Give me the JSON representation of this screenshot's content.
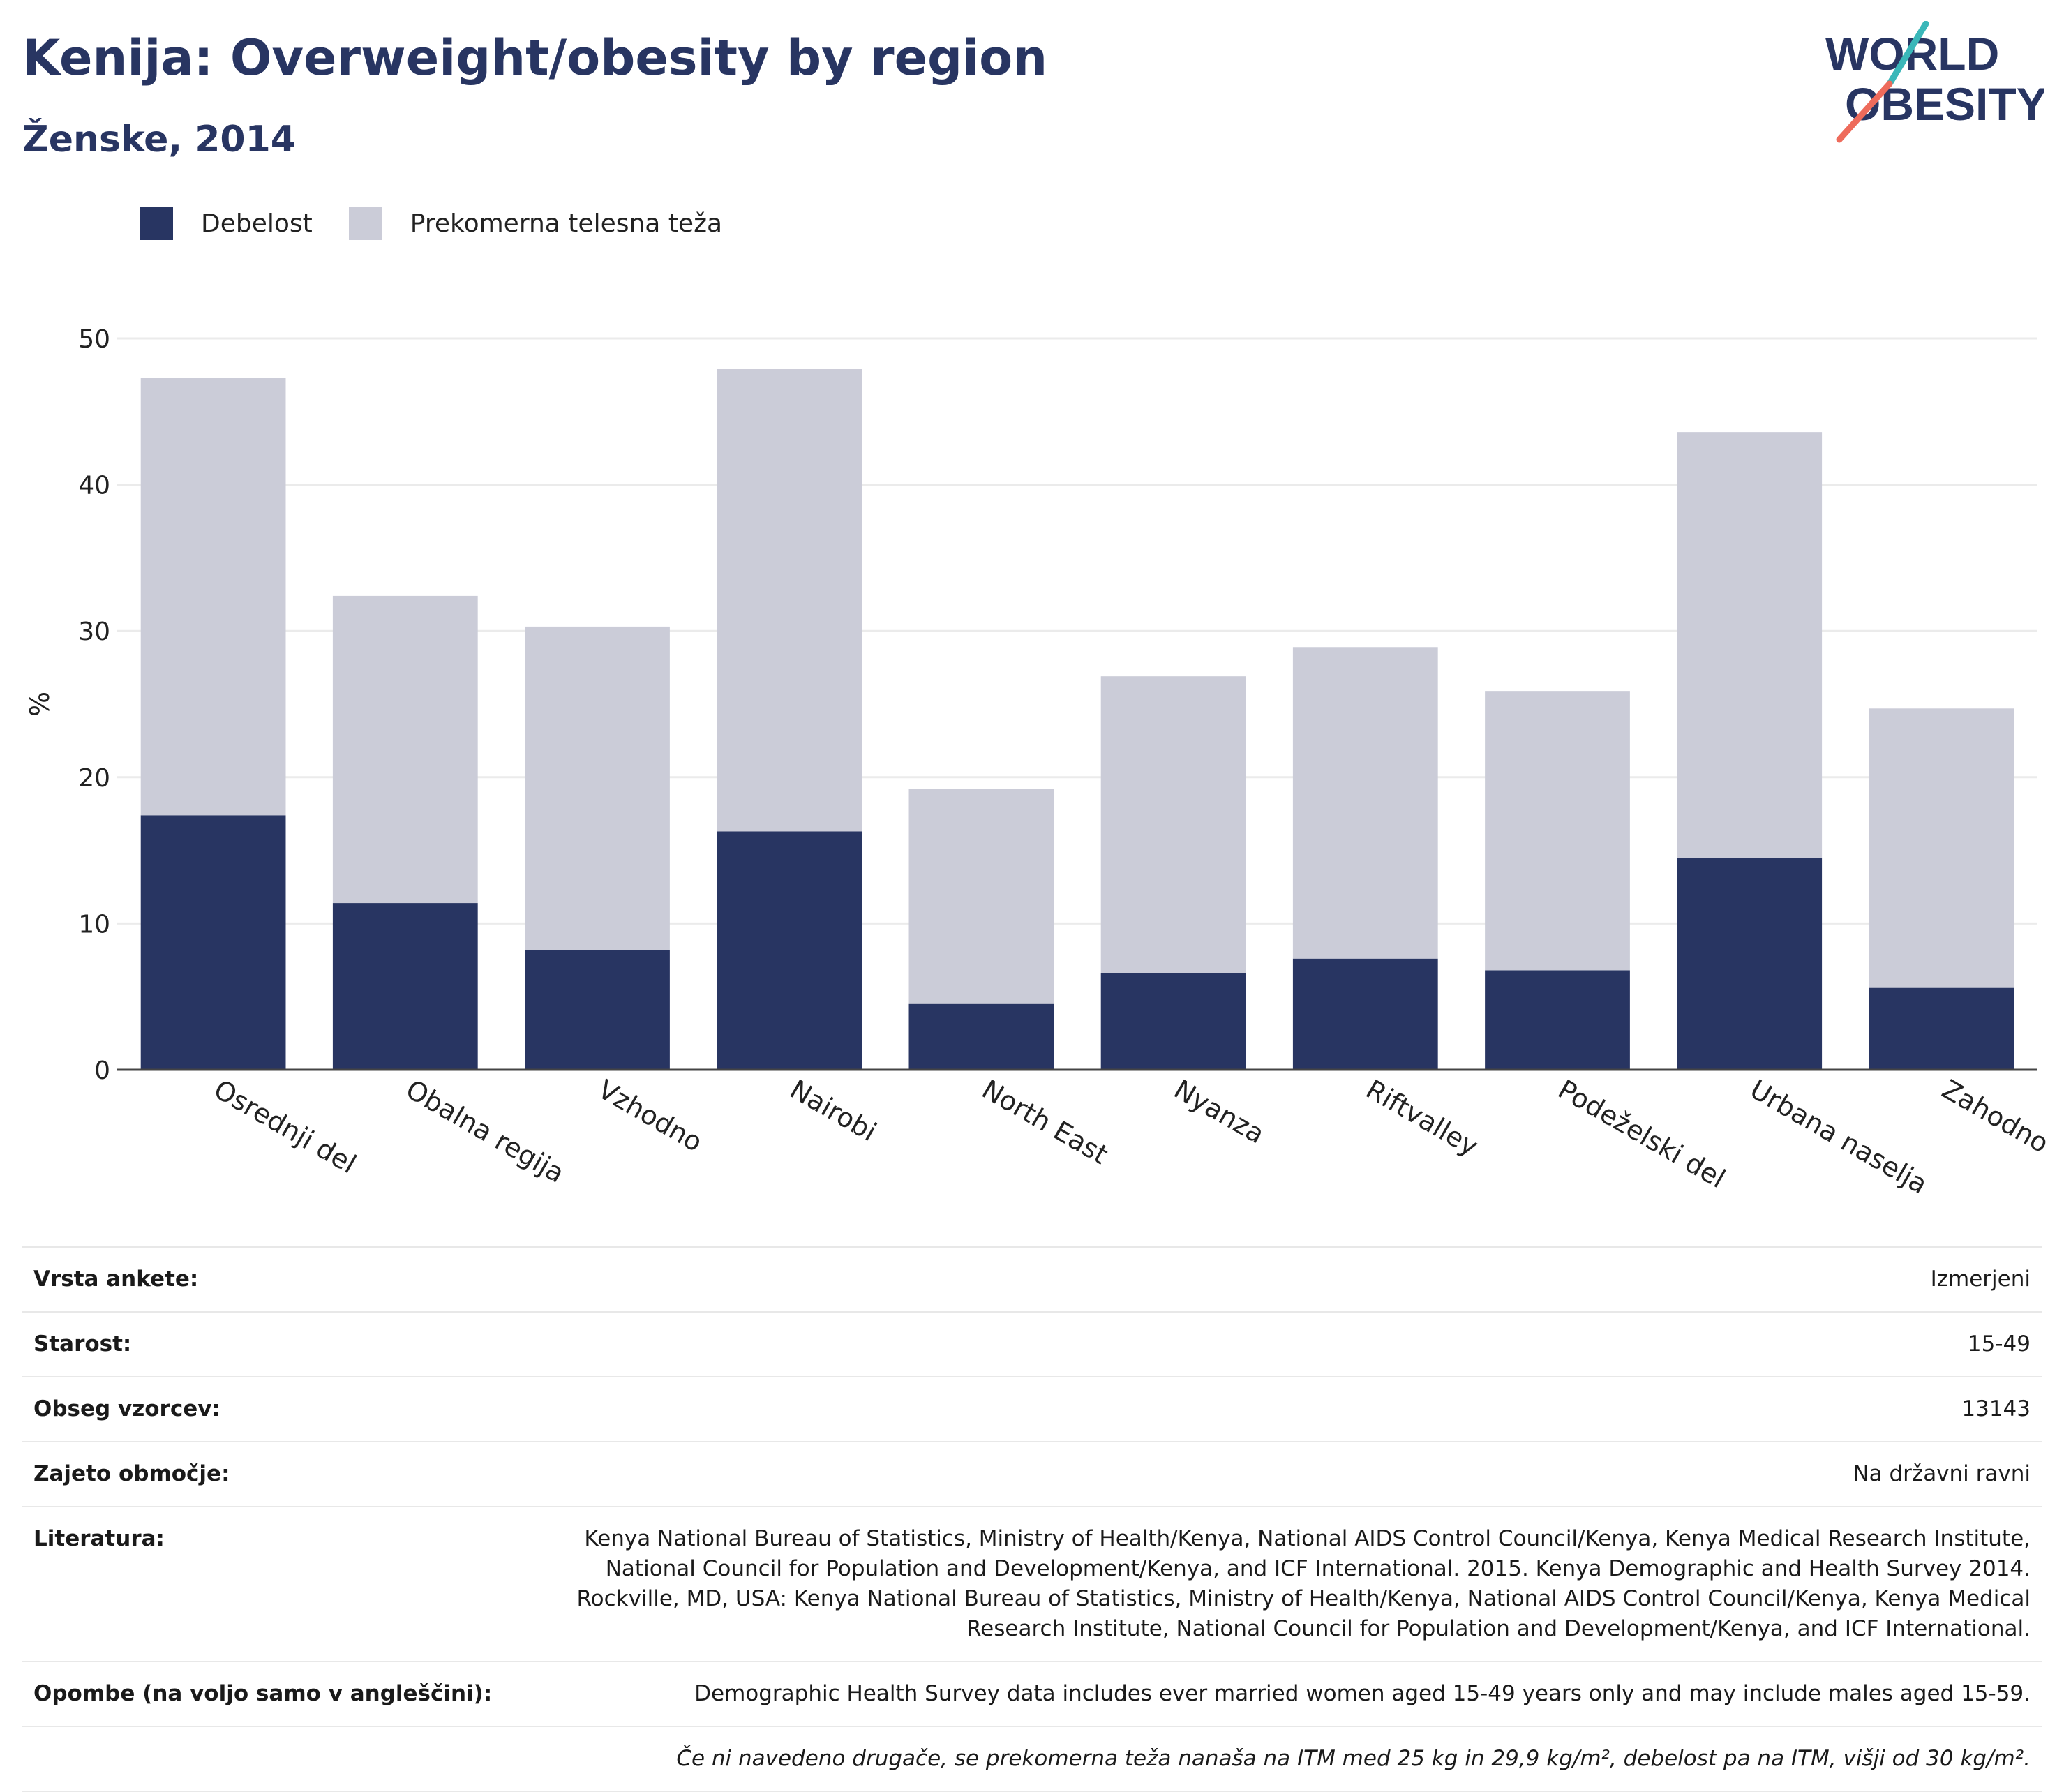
{
  "header": {
    "title": "Kenija: Overweight/obesity by region",
    "subtitle": "Ženske, 2014"
  },
  "logo": {
    "line1": "WORLD",
    "line2": "OBESITY"
  },
  "colors": {
    "obesity": "#283562",
    "overweight": "#cbccd8",
    "grid": "#ebebeb",
    "axis": "#444444"
  },
  "chart_data": {
    "type": "bar",
    "stacked": true,
    "categories": [
      "Osrednji del",
      "Obalna regija",
      "Vzhodno",
      "Nairobi",
      "North East",
      "Nyanza",
      "Riftvalley",
      "Podeželski del",
      "Urbana naselja",
      "Zahodno"
    ],
    "series": [
      {
        "name": "Debelost",
        "values": [
          17.4,
          11.4,
          8.2,
          16.3,
          4.5,
          6.6,
          7.6,
          6.8,
          14.5,
          5.6
        ]
      },
      {
        "name": "Prekomerna telesna teža",
        "values": [
          29.9,
          21.0,
          22.1,
          31.6,
          14.7,
          20.3,
          21.3,
          19.1,
          29.1,
          19.1
        ]
      }
    ],
    "ylabel": "%",
    "ylim": [
      0,
      50
    ],
    "yticks": [
      0,
      10,
      20,
      30,
      40,
      50
    ],
    "grid": true,
    "legend_position": "top-left"
  },
  "info": {
    "rows": [
      {
        "label": "Vrsta ankete:",
        "value": "Izmerjeni"
      },
      {
        "label": "Starost:",
        "value": "15-49"
      },
      {
        "label": "Obseg vzorcev:",
        "value": "13143"
      },
      {
        "label": "Zajeto območje:",
        "value": "Na državni ravni"
      },
      {
        "label": "Literatura:",
        "value": "Kenya National Bureau of Statistics, Ministry of Health/Kenya, National AIDS Control Council/Kenya, Kenya Medical Research Institute, National Council for Population and Development/Kenya, and ICF International. 2015. Kenya Demographic and Health Survey 2014. Rockville, MD, USA: Kenya National Bureau of Statistics, Ministry of Health/Kenya, National AIDS Control Council/Kenya, Kenya Medical Research Institute, National Council for Population and Development/Kenya, and ICF International."
      },
      {
        "label": "Opombe (na voljo samo v angleščini):",
        "value": "Demographic Health Survey data includes ever married women aged 15-49 years only and may include males aged 15-59."
      }
    ],
    "footnote": "Če ni navedeno drugače, se prekomerna teža nanaša na ITM med 25 kg in 29,9 kg/m², debelost pa na ITM, višji od 30 kg/m²."
  }
}
